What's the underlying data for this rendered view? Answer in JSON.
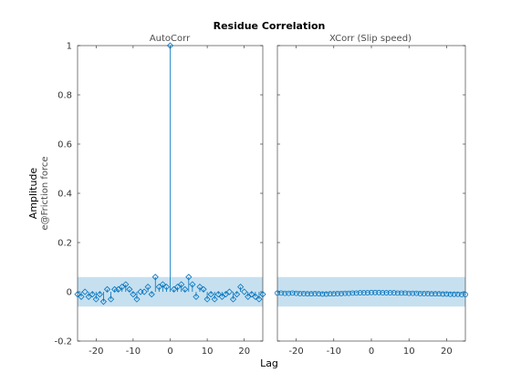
{
  "chart_data": {
    "type": "stem",
    "title": "Residue Correlation",
    "ylabel": "Amplitude",
    "ylabel_sub": "e@Friction force",
    "xlabel": "Lag",
    "colors": {
      "stem": "#0072bd",
      "confidence_band": "#c6e0f0",
      "axes": "#262626",
      "background": "#ffffff"
    },
    "shared_ylim": [
      -0.2,
      1.0
    ],
    "yticks": [
      -0.2,
      0,
      0.2,
      0.4,
      0.6,
      0.8,
      1.0
    ],
    "ytick_labels": [
      "-0.2",
      "0",
      "0.2",
      "0.4",
      "0.6",
      "0.8",
      "1"
    ],
    "xlim": [
      -25,
      25
    ],
    "xticks": [
      -20,
      -10,
      0,
      10,
      20
    ],
    "xtick_labels": [
      "-20",
      "-10",
      "0",
      "10",
      "20"
    ],
    "confidence_bound": 0.06,
    "panels": [
      {
        "subtitle": "AutoCorr",
        "marker": "diamond",
        "lags": [
          -25,
          -24,
          -23,
          -22,
          -21,
          -20,
          -19,
          -18,
          -17,
          -16,
          -15,
          -14,
          -13,
          -12,
          -11,
          -10,
          -9,
          -8,
          -7,
          -6,
          -5,
          -4,
          -3,
          -2,
          -1,
          0,
          1,
          2,
          3,
          4,
          5,
          6,
          7,
          8,
          9,
          10,
          11,
          12,
          13,
          14,
          15,
          16,
          17,
          18,
          19,
          20,
          21,
          22,
          23,
          24,
          25
        ],
        "values": [
          -0.01,
          -0.02,
          0.0,
          -0.02,
          -0.01,
          -0.03,
          -0.01,
          -0.04,
          0.01,
          -0.03,
          0.01,
          0.01,
          0.02,
          0.03,
          0.01,
          -0.01,
          -0.03,
          0.0,
          0.0,
          0.02,
          -0.01,
          0.06,
          0.02,
          0.03,
          0.02,
          1.0,
          0.01,
          0.02,
          0.03,
          0.01,
          0.06,
          0.03,
          -0.02,
          0.02,
          0.01,
          -0.03,
          -0.01,
          -0.03,
          -0.01,
          -0.02,
          -0.01,
          0.0,
          -0.03,
          -0.01,
          0.02,
          0.0,
          -0.02,
          -0.01,
          -0.02,
          -0.03,
          -0.01
        ]
      },
      {
        "subtitle": "XCorr (Slip speed)",
        "marker": "circle",
        "lags": [
          -25,
          -24,
          -23,
          -22,
          -21,
          -20,
          -19,
          -18,
          -17,
          -16,
          -15,
          -14,
          -13,
          -12,
          -11,
          -10,
          -9,
          -8,
          -7,
          -6,
          -5,
          -4,
          -3,
          -2,
          -1,
          0,
          1,
          2,
          3,
          4,
          5,
          6,
          7,
          8,
          9,
          10,
          11,
          12,
          13,
          14,
          15,
          16,
          17,
          18,
          19,
          20,
          21,
          22,
          23,
          24,
          25
        ],
        "values": [
          -0.005,
          -0.005,
          -0.006,
          -0.006,
          -0.005,
          -0.006,
          -0.007,
          -0.007,
          -0.008,
          -0.008,
          -0.007,
          -0.008,
          -0.009,
          -0.009,
          -0.008,
          -0.008,
          -0.007,
          -0.007,
          -0.006,
          -0.006,
          -0.005,
          -0.005,
          -0.004,
          -0.004,
          -0.004,
          -0.003,
          -0.003,
          -0.003,
          -0.004,
          -0.004,
          -0.004,
          -0.004,
          -0.005,
          -0.005,
          -0.005,
          -0.006,
          -0.006,
          -0.006,
          -0.007,
          -0.007,
          -0.007,
          -0.008,
          -0.008,
          -0.008,
          -0.009,
          -0.009,
          -0.01,
          -0.01,
          -0.01,
          -0.011,
          -0.011
        ]
      }
    ]
  }
}
